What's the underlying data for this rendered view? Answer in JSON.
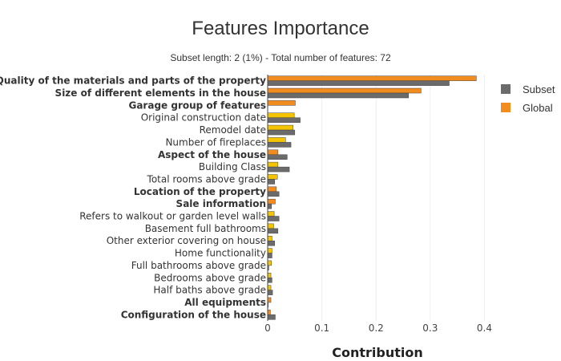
{
  "chart_data": {
    "type": "bar",
    "orientation": "horizontal",
    "title": "Features Importance",
    "subtitle": "Subset length: 2 (1%) - Total number of features: 72",
    "xlabel": "Contribution",
    "ylabel": "",
    "xlim": [
      0,
      0.42
    ],
    "xticks": [
      "0",
      "0.1",
      "0.2",
      "0.3",
      "0.4"
    ],
    "grid": true,
    "legend_position": "right",
    "categories": [
      {
        "label": "Quality of the materials and parts of the property",
        "bold": true
      },
      {
        "label": "Size of different elements in the house",
        "bold": true
      },
      {
        "label": "Garage group of features",
        "bold": true
      },
      {
        "label": "Original construction date",
        "bold": false
      },
      {
        "label": "Remodel date",
        "bold": false
      },
      {
        "label": "Number of fireplaces",
        "bold": false
      },
      {
        "label": "Aspect of the house",
        "bold": true
      },
      {
        "label": "Building Class",
        "bold": false
      },
      {
        "label": "Total rooms above grade",
        "bold": false
      },
      {
        "label": "Location of the property",
        "bold": true
      },
      {
        "label": "Sale information",
        "bold": true
      },
      {
        "label": "Refers to walkout or garden level walls",
        "bold": false
      },
      {
        "label": "Basement full bathrooms",
        "bold": false
      },
      {
        "label": "Other exterior covering on house",
        "bold": false
      },
      {
        "label": "Home functionality",
        "bold": false
      },
      {
        "label": "Full bathrooms above grade",
        "bold": false
      },
      {
        "label": "Bedrooms above grade",
        "bold": false
      },
      {
        "label": "Half baths above grade",
        "bold": false
      },
      {
        "label": "All equipments",
        "bold": true
      },
      {
        "label": "Configuration of the house",
        "bold": true
      }
    ],
    "series": [
      {
        "name": "Subset",
        "color": "#6b6b6b",
        "values": [
          0.335,
          0.26,
          0.0,
          0.06,
          0.05,
          0.043,
          0.036,
          0.04,
          0.013,
          0.021,
          0.007,
          0.021,
          0.019,
          0.013,
          0.008,
          0.002,
          0.008,
          0.009,
          0.001,
          0.014
        ]
      },
      {
        "name": "Global",
        "color": "#f28c1e",
        "values": [
          0.385,
          0.283,
          0.051,
          0.049,
          0.047,
          0.033,
          0.019,
          0.019,
          0.018,
          0.016,
          0.014,
          0.012,
          0.011,
          0.008,
          0.008,
          0.007,
          0.006,
          0.006,
          0.006,
          0.005
        ]
      }
    ],
    "global_bar_colors": {
      "group_feature": "#f28c1e",
      "single_feature": "#f5c400"
    }
  }
}
